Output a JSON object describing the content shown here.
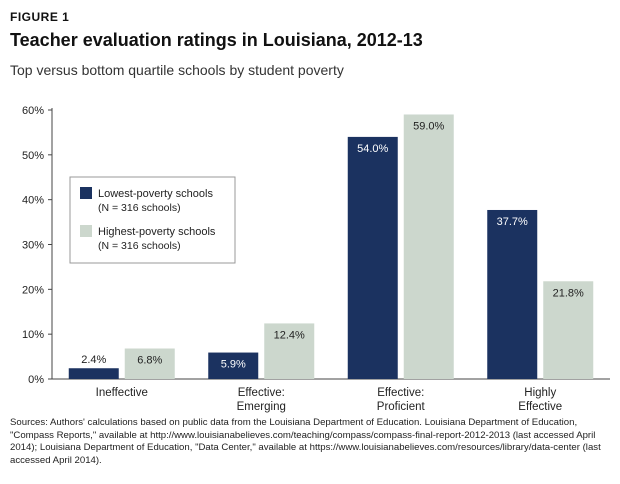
{
  "figure_label": "FIGURE 1",
  "colors": {
    "lowest": "#1b3260",
    "highest": "#ccd7cd",
    "axis": "#444444",
    "grid": "#dddddd"
  },
  "chart_data": {
    "type": "bar",
    "title": "Teacher evaluation ratings in Louisiana, 2012-13",
    "subtitle": "Top versus bottom quartile schools by student poverty",
    "xlabel": "",
    "ylabel": "",
    "ylim": [
      0,
      60
    ],
    "yticks": [
      "0%",
      "10%",
      "20%",
      "30%",
      "40%",
      "50%",
      "60%"
    ],
    "categories": [
      [
        "Ineffective"
      ],
      [
        "Effective:",
        "Emerging"
      ],
      [
        "Effective:",
        "Proficient"
      ],
      [
        "Highly",
        "Effective"
      ]
    ],
    "series": [
      {
        "name": "Lowest-poverty schools",
        "note": "(N = 316 schools)",
        "values": [
          2.4,
          5.9,
          54.0,
          37.7
        ],
        "labels": [
          "2.4%",
          "5.9%",
          "54.0%",
          "37.7%"
        ]
      },
      {
        "name": "Highest-poverty schools",
        "note": "(N = 316 schools)",
        "values": [
          6.8,
          12.4,
          59.0,
          21.8
        ],
        "labels": [
          "6.8%",
          "12.4%",
          "59.0%",
          "21.8%"
        ]
      }
    ],
    "legend_position": "left",
    "grid": false
  },
  "sources": "Sources: Authors' calculations based on public data from the Louisiana Department of Education. Louisiana Department of Education, \"Compass Reports,\" available at http://www.louisianabelieves.com/teaching/compass/compass-final-report-2012-2013 (last accessed April 2014); Louisiana Department of Education, \"Data Center,\" available at https://www.louisianabelieves.com/resources/library/data-center (last accessed April 2014)."
}
